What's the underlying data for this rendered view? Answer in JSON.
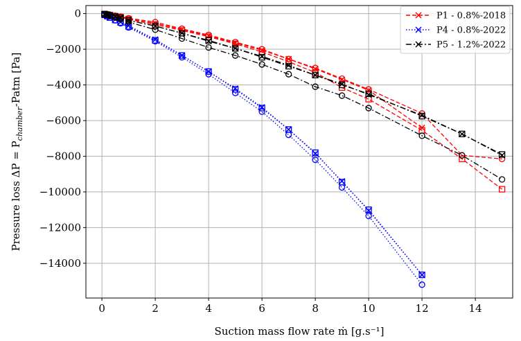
{
  "chart_data": {
    "type": "line",
    "xlabel": "Suction mass flow rate ṁ [g.s⁻¹]",
    "ylabel_parts": {
      "prefix": "Pressure loss ΔP = P",
      "subscript": "chamber",
      "suffix": "-Patm [Pa]"
    },
    "xlim": [
      -0.6,
      15.4
    ],
    "ylim": [
      -15950,
      450
    ],
    "xticks": [
      0,
      2,
      4,
      6,
      8,
      10,
      12,
      14
    ],
    "yticks": [
      0,
      -2000,
      -4000,
      -6000,
      -8000,
      -10000,
      -12000,
      -14000
    ],
    "xtick_labels": [
      "0",
      "2",
      "4",
      "6",
      "8",
      "10",
      "12",
      "14"
    ],
    "ytick_labels": [
      "0",
      "−2000",
      "−4000",
      "−6000",
      "−8000",
      "−10000",
      "−12000",
      "−14000"
    ],
    "grid": true,
    "legend_position": "top-right",
    "legend": [
      {
        "label": "P1 - 0.8%-2018",
        "color": "#ff0000",
        "dash": "dashed",
        "marker": "x"
      },
      {
        "label": "P4 - 0.8%-2022",
        "color": "#0000ff",
        "dash": "dotted",
        "marker": "x"
      },
      {
        "label": "P5 - 1.2%-2022",
        "color": "#000000",
        "dash": "dashdot",
        "marker": "x"
      }
    ],
    "series": [
      {
        "color": "#ff0000",
        "dash": "dashed",
        "marker": "x",
        "x": [
          0.1,
          0.2,
          0.3,
          0.5,
          0.7,
          1,
          2,
          3,
          4,
          5,
          6,
          7,
          8,
          9,
          10,
          12
        ],
        "y": [
          -20,
          -50,
          -80,
          -130,
          -180,
          -300,
          -550,
          -900,
          -1250,
          -1650,
          -2050,
          -2550,
          -3100,
          -3700,
          -4300,
          -6400
        ]
      },
      {
        "color": "#ff0000",
        "dash": "dashed",
        "marker": "circle",
        "x": [
          0.1,
          0.2,
          0.3,
          0.5,
          0.7,
          1,
          2,
          3,
          4,
          5,
          6,
          7,
          8,
          9,
          10,
          12,
          13.5,
          15
        ],
        "y": [
          -20,
          -40,
          -70,
          -120,
          -170,
          -260,
          -480,
          -850,
          -1200,
          -1600,
          -2000,
          -2550,
          -3050,
          -3650,
          -4250,
          -5600,
          -7950,
          -8150
        ]
      },
      {
        "color": "#ff0000",
        "dash": "dashed",
        "marker": "square",
        "x": [
          0.1,
          0.2,
          0.3,
          0.5,
          0.7,
          1,
          2,
          3,
          4,
          5,
          6,
          7,
          8,
          9,
          10,
          12,
          13.5,
          15
        ],
        "y": [
          -25,
          -60,
          -90,
          -150,
          -200,
          -320,
          -620,
          -950,
          -1300,
          -1700,
          -2150,
          -2700,
          -3300,
          -4150,
          -4800,
          -6550,
          -8150,
          -9850
        ]
      },
      {
        "color": "#0000ff",
        "dash": "dotted",
        "marker": "x",
        "x": [
          0.1,
          0.2,
          0.3,
          0.5,
          0.7,
          1,
          2,
          3,
          4,
          5,
          6,
          7,
          8,
          9,
          10,
          12
        ],
        "y": [
          -60,
          -130,
          -200,
          -330,
          -470,
          -680,
          -1450,
          -2350,
          -3250,
          -4200,
          -5250,
          -6500,
          -7850,
          -9400,
          -11050,
          -14650
        ]
      },
      {
        "color": "#0000ff",
        "dash": "dotted",
        "marker": "circle",
        "x": [
          0.1,
          0.2,
          0.3,
          0.5,
          0.7,
          1,
          2,
          3,
          4,
          5,
          6,
          7,
          8,
          9,
          10,
          12
        ],
        "y": [
          -80,
          -150,
          -230,
          -380,
          -540,
          -780,
          -1550,
          -2450,
          -3400,
          -4450,
          -5500,
          -6800,
          -8200,
          -9750,
          -11350,
          -15200
        ]
      },
      {
        "color": "#0000ff",
        "dash": "dotted",
        "marker": "square",
        "x": [
          0.1,
          0.2,
          0.3,
          0.5,
          0.7,
          1,
          2,
          3,
          4,
          5,
          6,
          7,
          8,
          9,
          10,
          12
        ],
        "y": [
          -70,
          -140,
          -220,
          -360,
          -500,
          -720,
          -1500,
          -2350,
          -3250,
          -4250,
          -5300,
          -6500,
          -7800,
          -9450,
          -11000,
          -14650
        ]
      },
      {
        "color": "#000000",
        "dash": "dashdot",
        "marker": "x",
        "x": [
          0.1,
          0.2,
          0.3,
          0.5,
          0.7,
          1,
          2,
          3,
          4,
          5,
          6,
          7,
          8,
          9,
          10,
          12,
          13.5,
          15
        ],
        "y": [
          -30,
          -60,
          -100,
          -170,
          -240,
          -380,
          -700,
          -1100,
          -1550,
          -1950,
          -2400,
          -2900,
          -3450,
          -3950,
          -4550,
          -5700,
          -6750,
          -7950
        ]
      },
      {
        "color": "#000000",
        "dash": "dashdot",
        "marker": "circle",
        "x": [
          0.1,
          0.2,
          0.3,
          0.5,
          0.7,
          1,
          2,
          3,
          4,
          5,
          6,
          7,
          8,
          9,
          10,
          12,
          13.5,
          15
        ],
        "y": [
          -40,
          -80,
          -130,
          -220,
          -310,
          -480,
          -900,
          -1400,
          -1900,
          -2350,
          -2850,
          -3400,
          -4100,
          -4600,
          -5300,
          -6850,
          -7950,
          -9300
        ]
      },
      {
        "color": "#000000",
        "dash": "dashdot",
        "marker": "square",
        "x": [
          0.1,
          0.2,
          0.3,
          0.5,
          0.7,
          1,
          2,
          3,
          4,
          5,
          6,
          7,
          8,
          9,
          10,
          12,
          13.5,
          15
        ],
        "y": [
          -30,
          -60,
          -100,
          -170,
          -240,
          -380,
          -700,
          -1100,
          -1500,
          -1950,
          -2450,
          -2950,
          -3450,
          -4000,
          -4500,
          -5750,
          -6750,
          -7900
        ]
      }
    ]
  }
}
